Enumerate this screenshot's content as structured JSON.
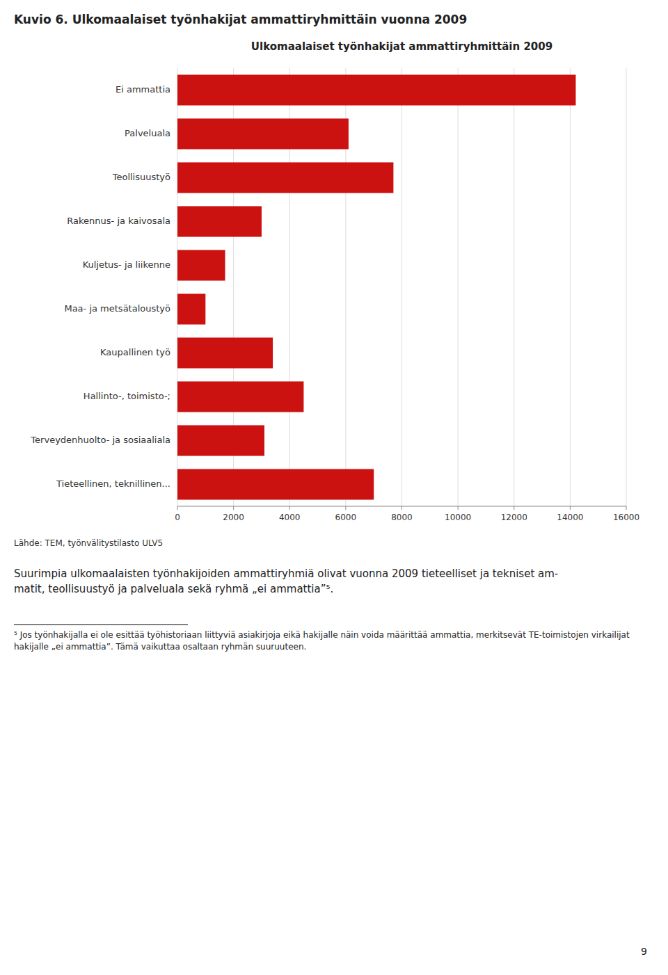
{
  "page_title": "Kuvio 6. Ulkomaalaiset työnhakijat ammattiryhmittäin vuonna 2009",
  "source": "Lähde: TEM, työnvälitystilasto ULV5",
  "body_text": [
    "Suurimpia ulkomaalaisten työnhakijoiden ammattiryhmiä olivat vuonna 2009 tieteelliset ja tekniset am-",
    "matit, teollisuustyö ja palveluala sekä ryhmä „ei ammattia”⁵."
  ],
  "footnote": "⁵ Jos työnhakijalla ei ole esittää työhistoriaan liittyviä asiakirjoja eikä hakijalle näin voida määrittää ammattia, merkitsevät TE-toimistojen virkailijat hakijalle „ei ammattia”. Tämä vaikuttaa osaltaan ryhmän suuruuteen.",
  "page_number": "9",
  "chart_data": {
    "type": "bar",
    "orientation": "horizontal",
    "title": "Ulkomaalaiset työnhakijat ammattiryhmittäin 2009",
    "categories": [
      "Ei ammattia",
      "Palveluala",
      "Teollisuustyö",
      "Rakennus- ja kaivosala",
      "Kuljetus- ja liikenne",
      "Maa- ja metsätaloustyö",
      "Kaupallinen työ",
      "Hallinto-, toimisto-;",
      "Terveydenhuolto- ja sosiaaliala",
      "Tieteellinen, teknillinen..."
    ],
    "values": [
      14200,
      6100,
      7700,
      3000,
      1700,
      1000,
      3400,
      4500,
      3100,
      7000
    ],
    "color": "#cc1111",
    "xlim": [
      0,
      16000
    ],
    "xticks": [
      0,
      2000,
      4000,
      6000,
      8000,
      10000,
      12000,
      14000,
      16000
    ],
    "grid": true
  }
}
